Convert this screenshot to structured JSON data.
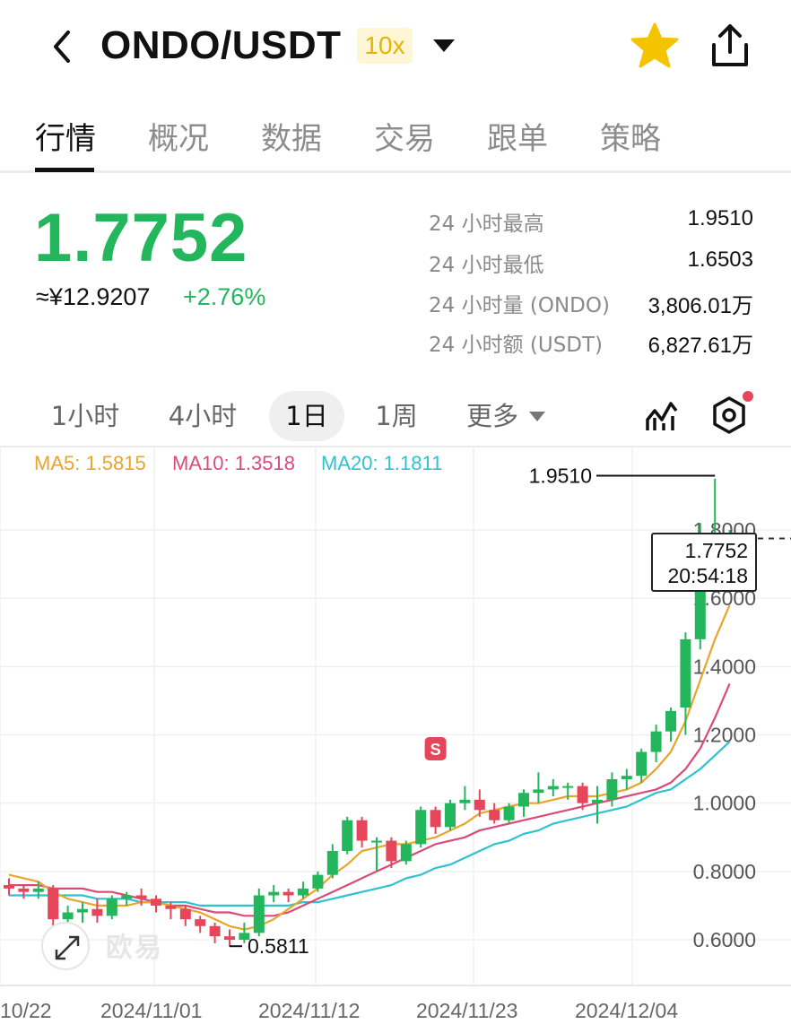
{
  "header": {
    "pair": "ONDO/USDT",
    "leverage": "10x",
    "icons": {
      "back": "chevron-left-icon",
      "dropdown": "caret-down-icon",
      "favorite": "star-icon",
      "share": "share-icon"
    },
    "favorite_color": "#f5c400"
  },
  "tabs": [
    {
      "label": "行情",
      "active": true
    },
    {
      "label": "概况"
    },
    {
      "label": "数据"
    },
    {
      "label": "交易"
    },
    {
      "label": "跟单"
    },
    {
      "label": "策略"
    }
  ],
  "ticker": {
    "price": "1.7752",
    "cny": "≈¥12.9207",
    "change": "+2.76%",
    "up_color": "#24b65c",
    "stats": [
      {
        "label": "24 小时最高",
        "value": "1.9510"
      },
      {
        "label": "24 小时最低",
        "value": "1.6503"
      },
      {
        "label": "24 小时量 (ONDO)",
        "value": "3,806.01万"
      },
      {
        "label": "24 小时额 (USDT)",
        "value": "6,827.61万"
      }
    ]
  },
  "timeframes": {
    "items": [
      "1小时",
      "4小时",
      "1日",
      "1周",
      "更多"
    ],
    "selected": "1日",
    "icons": {
      "indicators": "indicator-chart-icon",
      "settings": "settings-hexagon-icon"
    }
  },
  "ma": {
    "ma5": {
      "label": "MA5: 1.5815",
      "color": "#e9a52a"
    },
    "ma10": {
      "label": "MA10: 1.3518",
      "color": "#d94b7b"
    },
    "ma20": {
      "label": "MA20: 1.1811",
      "color": "#2ec2cf"
    }
  },
  "chart_data": {
    "type": "candlestick",
    "x_tick_labels": [
      "10/22",
      "2024/11/01",
      "2024/11/12",
      "2024/11/23",
      "2024/12/04"
    ],
    "y_tick_labels": [
      "1.8000",
      "1.6000",
      "1.4000",
      "1.2000",
      "1.0000",
      "0.8000",
      "0.6000"
    ],
    "ylim": [
      0.48,
      1.88
    ],
    "up_color": "#24b65c",
    "down_color": "#e5465a",
    "high_label": "1.9510",
    "low_label": "0.5811",
    "current_price": "1.7752",
    "current_time": "20:54:18",
    "trade_marker": "S",
    "candles": [
      [
        0.76,
        0.75,
        0.78,
        0.73
      ],
      [
        0.75,
        0.74,
        0.76,
        0.72
      ],
      [
        0.74,
        0.75,
        0.77,
        0.72
      ],
      [
        0.75,
        0.66,
        0.76,
        0.63
      ],
      [
        0.66,
        0.68,
        0.7,
        0.64
      ],
      [
        0.68,
        0.69,
        0.71,
        0.65
      ],
      [
        0.69,
        0.67,
        0.72,
        0.65
      ],
      [
        0.67,
        0.72,
        0.73,
        0.66
      ],
      [
        0.72,
        0.73,
        0.74,
        0.7
      ],
      [
        0.73,
        0.72,
        0.75,
        0.7
      ],
      [
        0.72,
        0.7,
        0.73,
        0.68
      ],
      [
        0.7,
        0.69,
        0.71,
        0.66
      ],
      [
        0.69,
        0.66,
        0.7,
        0.64
      ],
      [
        0.66,
        0.64,
        0.67,
        0.62
      ],
      [
        0.64,
        0.61,
        0.65,
        0.59
      ],
      [
        0.61,
        0.6,
        0.63,
        0.58
      ],
      [
        0.6,
        0.62,
        0.65,
        0.59
      ],
      [
        0.62,
        0.73,
        0.75,
        0.61
      ],
      [
        0.73,
        0.74,
        0.76,
        0.71
      ],
      [
        0.74,
        0.73,
        0.75,
        0.71
      ],
      [
        0.73,
        0.75,
        0.77,
        0.72
      ],
      [
        0.75,
        0.79,
        0.8,
        0.74
      ],
      [
        0.79,
        0.86,
        0.88,
        0.78
      ],
      [
        0.86,
        0.95,
        0.96,
        0.85
      ],
      [
        0.95,
        0.89,
        0.96,
        0.87
      ],
      [
        0.89,
        0.89,
        0.9,
        0.8
      ],
      [
        0.89,
        0.83,
        0.9,
        0.81
      ],
      [
        0.83,
        0.88,
        0.89,
        0.82
      ],
      [
        0.88,
        0.98,
        0.99,
        0.87
      ],
      [
        0.98,
        0.93,
        0.99,
        0.91
      ],
      [
        0.93,
        1.0,
        1.01,
        0.92
      ],
      [
        1.0,
        1.01,
        1.05,
        0.98
      ],
      [
        1.01,
        0.98,
        1.04,
        0.96
      ],
      [
        0.98,
        0.95,
        1.0,
        0.94
      ],
      [
        0.95,
        0.99,
        1.0,
        0.94
      ],
      [
        0.99,
        1.03,
        1.04,
        0.96
      ],
      [
        1.03,
        1.04,
        1.09,
        1.0
      ],
      [
        1.04,
        1.05,
        1.07,
        1.02
      ],
      [
        1.05,
        1.05,
        1.06,
        1.01
      ],
      [
        1.05,
        1.0,
        1.06,
        0.98
      ],
      [
        1.0,
        1.01,
        1.05,
        0.94
      ],
      [
        1.01,
        1.07,
        1.09,
        0.99
      ],
      [
        1.07,
        1.08,
        1.1,
        1.04
      ],
      [
        1.08,
        1.15,
        1.16,
        1.06
      ],
      [
        1.15,
        1.21,
        1.23,
        1.12
      ],
      [
        1.21,
        1.27,
        1.28,
        1.18
      ],
      [
        1.28,
        1.48,
        1.5,
        1.2
      ],
      [
        1.48,
        1.62,
        1.82,
        1.45
      ],
      [
        1.63,
        1.73,
        1.95,
        1.62
      ],
      [
        1.75,
        1.78,
        1.8,
        1.72
      ]
    ],
    "ma5_series": [
      0.79,
      0.78,
      0.77,
      0.74,
      0.72,
      0.71,
      0.7,
      0.7,
      0.7,
      0.71,
      0.71,
      0.7,
      0.69,
      0.68,
      0.66,
      0.64,
      0.63,
      0.64,
      0.66,
      0.69,
      0.72,
      0.75,
      0.79,
      0.82,
      0.86,
      0.87,
      0.88,
      0.88,
      0.89,
      0.9,
      0.92,
      0.94,
      0.97,
      0.98,
      0.99,
      1.0,
      1.0,
      1.01,
      1.02,
      1.02,
      1.02,
      1.03,
      1.04,
      1.06,
      1.1,
      1.15,
      1.24,
      1.36,
      1.48,
      1.58
    ],
    "ma10_series": [
      0.76,
      0.76,
      0.76,
      0.75,
      0.75,
      0.75,
      0.74,
      0.74,
      0.73,
      0.72,
      0.71,
      0.7,
      0.7,
      0.69,
      0.68,
      0.68,
      0.67,
      0.67,
      0.67,
      0.68,
      0.7,
      0.72,
      0.74,
      0.76,
      0.78,
      0.8,
      0.82,
      0.84,
      0.86,
      0.88,
      0.89,
      0.9,
      0.92,
      0.93,
      0.94,
      0.95,
      0.96,
      0.97,
      0.98,
      0.99,
      1.0,
      1.01,
      1.02,
      1.03,
      1.04,
      1.06,
      1.1,
      1.16,
      1.25,
      1.35
    ],
    "ma20_series": [
      0.73,
      0.73,
      0.73,
      0.73,
      0.73,
      0.73,
      0.72,
      0.72,
      0.72,
      0.71,
      0.71,
      0.71,
      0.71,
      0.7,
      0.7,
      0.7,
      0.7,
      0.7,
      0.7,
      0.7,
      0.71,
      0.71,
      0.72,
      0.73,
      0.74,
      0.75,
      0.76,
      0.78,
      0.79,
      0.81,
      0.82,
      0.84,
      0.86,
      0.88,
      0.89,
      0.91,
      0.92,
      0.94,
      0.95,
      0.96,
      0.97,
      0.98,
      0.99,
      1.01,
      1.03,
      1.04,
      1.07,
      1.1,
      1.14,
      1.18
    ]
  },
  "watermark": "欧易"
}
